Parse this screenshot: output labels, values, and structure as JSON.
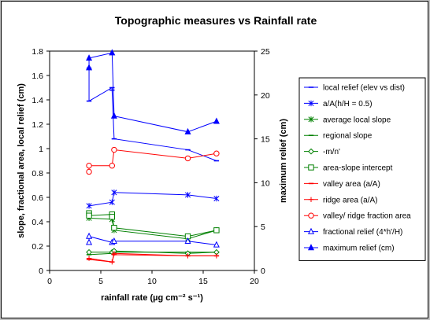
{
  "chart_data": {
    "type": "line",
    "title": "Topographic measures vs Rainfall rate",
    "xlabel": "rainfall rate (µg cm⁻² s⁻¹)",
    "ylabel": "slope, fractional area, local relief (cm)",
    "y2label": "maximum relief (cm)",
    "xlim": [
      0,
      20
    ],
    "ylim": [
      0,
      1.8
    ],
    "y2lim": [
      0,
      25
    ],
    "xticks": [
      "0",
      "5",
      "10",
      "15",
      "20"
    ],
    "yticks": [
      "0",
      "0.2",
      "0.4",
      "0.6",
      "0.8",
      "1",
      "1.2",
      "1.4",
      "1.6",
      "1.8"
    ],
    "y2ticks": [
      "0",
      "5",
      "10",
      "15",
      "20",
      "25"
    ],
    "grid": false,
    "legend_position": "right",
    "series": [
      {
        "name": "local relief (elev vs dist)",
        "color": "#0000ff",
        "marker": "dash",
        "axis": "left",
        "x": [
          3.85,
          3.85,
          6.1,
          6.1,
          6.3,
          13.5,
          16.3
        ],
        "y": [
          1.66,
          1.39,
          1.5,
          1.48,
          1.08,
          0.99,
          0.9
        ]
      },
      {
        "name": "a/A(h/H = 0.5)",
        "color": "#0000ff",
        "marker": "star",
        "axis": "left",
        "x": [
          3.85,
          6.1,
          6.3,
          13.5,
          16.3
        ],
        "y": [
          0.53,
          0.56,
          0.64,
          0.62,
          0.59
        ]
      },
      {
        "name": "average local slope",
        "color": "#008000",
        "marker": "star",
        "axis": "left",
        "x": [
          3.85,
          6.1,
          6.3,
          13.5,
          16.3
        ],
        "y": [
          0.43,
          0.42,
          0.33,
          0.26,
          0.33
        ]
      },
      {
        "name": "regional slope",
        "color": "#008000",
        "marker": "dash",
        "axis": "left",
        "x": [
          3.85,
          6.1,
          6.3,
          13.5,
          16.3
        ],
        "y": [
          0.13,
          0.14,
          0.15,
          0.15,
          0.15
        ]
      },
      {
        "name": "-m/n'",
        "color": "#008000",
        "marker": "diamond",
        "axis": "left",
        "x": [
          3.85,
          6.1,
          6.3,
          13.5,
          16.3
        ],
        "y": [
          0.15,
          0.15,
          0.16,
          0.14,
          0.15
        ]
      },
      {
        "name": "area-slope intercept",
        "color": "#008000",
        "marker": "square",
        "axis": "left",
        "x": [
          3.85,
          3.85,
          6.1,
          6.1,
          6.3,
          13.5,
          16.3
        ],
        "y": [
          0.47,
          0.45,
          0.46,
          0.44,
          0.35,
          0.28,
          0.33
        ]
      },
      {
        "name": "valley area (a/A)",
        "color": "#ff0000",
        "marker": "dash",
        "axis": "left",
        "x": [
          3.85,
          6.1,
          6.3,
          13.5,
          16.3
        ],
        "y": [
          0.09,
          0.07,
          0.13,
          0.12,
          0.12
        ]
      },
      {
        "name": "ridge area (a/A)",
        "color": "#ff0000",
        "marker": "plus",
        "axis": "left",
        "x": [
          3.85,
          6.1,
          6.3,
          13.5,
          16.3
        ],
        "y": [
          0.1,
          0.07,
          0.14,
          0.12,
          0.12
        ]
      },
      {
        "name": "valley/ ridge fraction area",
        "color": "#ff0000",
        "marker": "circle",
        "axis": "left",
        "x": [
          3.85,
          3.85,
          6.1,
          6.3,
          13.5,
          16.3
        ],
        "y": [
          0.81,
          0.86,
          0.86,
          0.99,
          0.92,
          0.96
        ]
      },
      {
        "name": "fractional relief (4*h'/H)",
        "color": "#0000ff",
        "marker": "triangle-open",
        "axis": "left",
        "x": [
          3.85,
          3.85,
          6.1,
          6.3,
          13.5,
          16.3
        ],
        "y": [
          0.23,
          0.28,
          0.23,
          0.24,
          0.24,
          0.21
        ]
      },
      {
        "name": "maximum relief (cm)",
        "color": "#0000ff",
        "marker": "triangle-filled",
        "axis": "right",
        "x": [
          3.85,
          3.85,
          6.1,
          6.3,
          13.5,
          16.3
        ],
        "y": [
          23.1,
          24.2,
          24.8,
          17.6,
          15.8,
          17.0
        ]
      }
    ]
  }
}
